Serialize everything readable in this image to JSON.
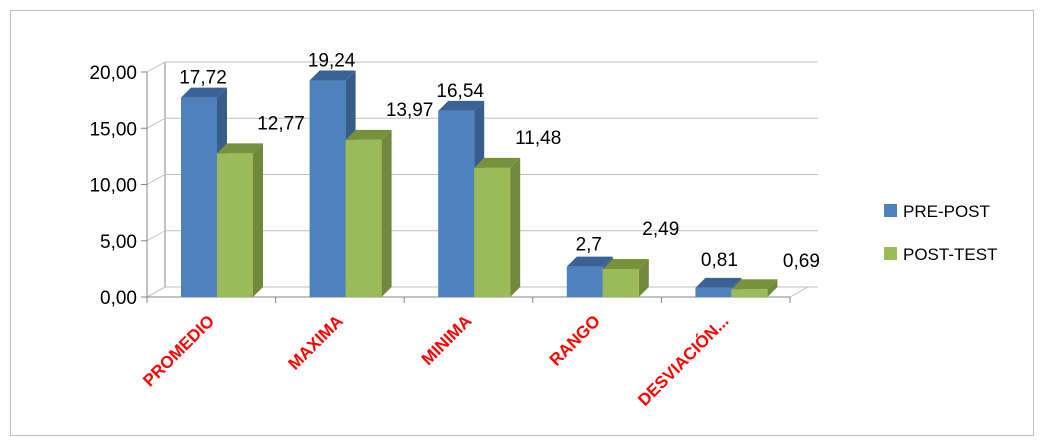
{
  "chart_data": {
    "type": "bar",
    "style": "3d-clustered-column",
    "categories": [
      "PROMEDIO",
      "MAXIMA",
      "MINIMA",
      "RANGO",
      "DESVIACIÓN..."
    ],
    "series": [
      {
        "name": "PRE-POST",
        "values": [
          17.72,
          19.24,
          16.54,
          2.7,
          0.81
        ],
        "labels": [
          "17,72",
          "19,24",
          "16,54",
          "2,7",
          "0,81"
        ]
      },
      {
        "name": "POST-TEST",
        "values": [
          12.77,
          13.97,
          11.48,
          2.49,
          0.69
        ],
        "labels": [
          "12,77",
          "13,97",
          "11,48",
          "2,49",
          "0,69"
        ]
      }
    ],
    "title": "",
    "xlabel": "",
    "ylabel": "",
    "ylim": [
      0,
      20
    ],
    "yticks": [
      0,
      5,
      10,
      15,
      20
    ],
    "ytick_labels": [
      "0,00",
      "5,00",
      "10,00",
      "15,00",
      "20,00"
    ],
    "grid": true,
    "legend_position": "right",
    "category_label_color": "#ff0000"
  },
  "colors": {
    "pre_front": "#4f81bd",
    "pre_side": "#385d8a",
    "pre_top": "#3b6294",
    "post_front": "#9bbb59",
    "post_side": "#71893f",
    "post_top": "#76923c",
    "grid": "#bfbfbf",
    "axis": "#868686"
  }
}
